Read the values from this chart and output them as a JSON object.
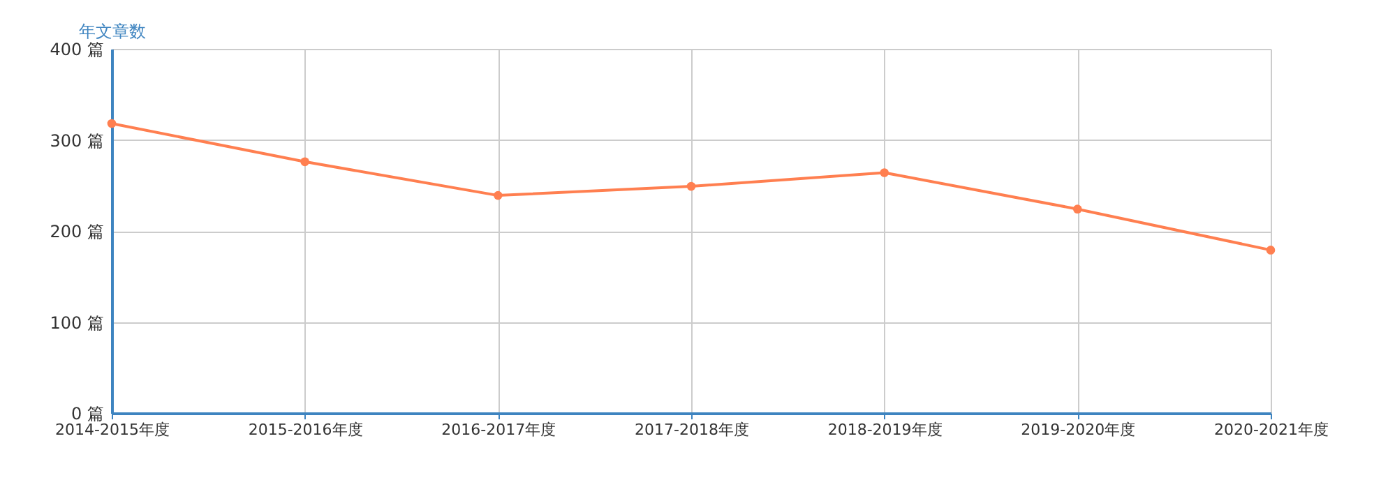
{
  "chart_data": {
    "type": "line",
    "ylabel": "年文章数",
    "categories": [
      "2014-2015年度",
      "2015-2016年度",
      "2016-2017年度",
      "2017-2018年度",
      "2018-2019年度",
      "2019-2020年度",
      "2020-2021年度"
    ],
    "series": [
      {
        "color": "#ff7f50",
        "values": [
          318,
          276,
          239,
          249,
          264,
          224,
          179
        ]
      }
    ],
    "ylim": [
      0,
      400
    ],
    "yticks": [
      {
        "value": 0,
        "label": "0 篇"
      },
      {
        "value": 100,
        "label": "100 篇"
      },
      {
        "value": 200,
        "label": "200 篇"
      },
      {
        "value": 300,
        "label": "300 篇"
      },
      {
        "value": 400,
        "label": "400 篇"
      }
    ],
    "grid": true,
    "marker": "circle",
    "line_style": "solid"
  }
}
